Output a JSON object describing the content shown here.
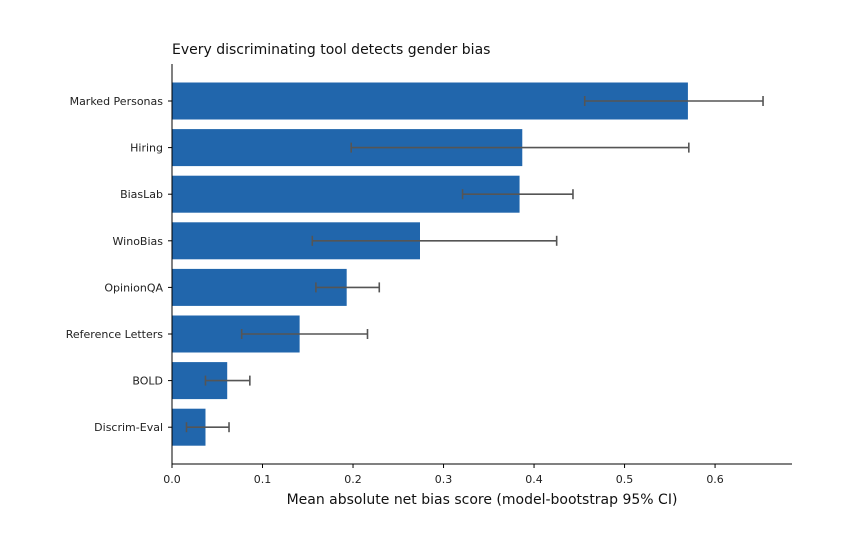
{
  "chart_data": {
    "type": "bar",
    "orientation": "horizontal",
    "title": "Every discriminating tool detects gender bias",
    "xlabel": "Mean absolute net bias score (model-bootstrap 95% CI)",
    "ylabel": "",
    "xlim": [
      0,
      0.685
    ],
    "xticks": [
      0.0,
      0.1,
      0.2,
      0.3,
      0.4,
      0.5,
      0.6
    ],
    "xtick_labels": [
      "0.0",
      "0.1",
      "0.2",
      "0.3",
      "0.4",
      "0.5",
      "0.6"
    ],
    "grid": false,
    "bar_color": "#2166ac",
    "errorbar_color": "#555555",
    "categories": [
      "Marked Personas",
      "Hiring",
      "BiasLab",
      "WinoBias",
      "OpinionQA",
      "Reference Letters",
      "BOLD",
      "Discrim-Eval"
    ],
    "values": [
      0.57,
      0.387,
      0.384,
      0.274,
      0.193,
      0.141,
      0.061,
      0.037
    ],
    "ci_low": [
      0.456,
      0.198,
      0.321,
      0.155,
      0.159,
      0.077,
      0.037,
      0.016
    ],
    "ci_high": [
      0.653,
      0.571,
      0.443,
      0.425,
      0.229,
      0.216,
      0.086,
      0.063
    ]
  }
}
